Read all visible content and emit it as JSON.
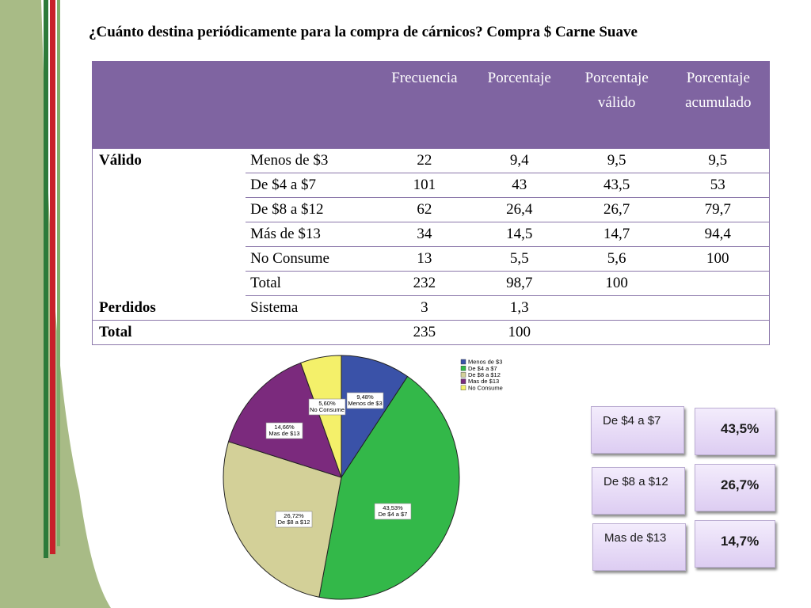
{
  "title": "¿Cuánto destina periódicamente para la compra de cárnicos? Compra $ Carne Suave",
  "table": {
    "headers": [
      "",
      "",
      "Frecuencia",
      "Porcentaje",
      "Porcentaje válido",
      "Porcentaje acumulado"
    ],
    "rows": [
      [
        "Válido",
        "Menos de $3",
        "22",
        "9,4",
        "9,5",
        "9,5"
      ],
      [
        "",
        "De $4 a $7",
        "101",
        "43",
        "43,5",
        "53"
      ],
      [
        "",
        "De $8 a $12",
        "62",
        "26,4",
        "26,7",
        "79,7"
      ],
      [
        "",
        "Más de $13",
        "34",
        "14,5",
        "14,7",
        "94,4"
      ],
      [
        "",
        "No Consume",
        "13",
        "5,5",
        "5,6",
        "100"
      ],
      [
        "",
        "Total",
        "232",
        "98,7",
        "100",
        ""
      ],
      [
        "Perdidos",
        "Sistema",
        "3",
        "1,3",
        "",
        ""
      ],
      [
        "Total",
        "",
        "235",
        "100",
        "",
        ""
      ]
    ]
  },
  "chart_data": {
    "type": "pie",
    "categories": [
      "Menos de $3",
      "De $4 a $7",
      "De $8 a $12",
      "Mas de $13",
      "No Consume"
    ],
    "values": [
      9.48,
      43.53,
      26.72,
      14.66,
      5.6
    ],
    "data_labels": [
      [
        "9,48%",
        "Menos de $3"
      ],
      [
        "43,53%",
        "De $4 a $7"
      ],
      [
        "26,72%",
        "De $8 a $12"
      ],
      [
        "14,66%",
        "Mas de $13"
      ],
      [
        "5,60%",
        "No Consume"
      ]
    ],
    "colors": [
      "#3a52a8",
      "#33b849",
      "#d3d098",
      "#7b2a7d",
      "#f4f06a"
    ],
    "legend_position": "right"
  },
  "callouts": [
    {
      "label": "De $4 a $7",
      "value": "43,5%"
    },
    {
      "label": "De $8 a $12",
      "value": "26,7%"
    },
    {
      "label": "Mas de $13",
      "value": "14,7%"
    }
  ],
  "theme": {
    "header_color": "#7f64a1",
    "decoration_colors": [
      "#a8bb86",
      "#2d7a3a",
      "#c8212a"
    ]
  }
}
